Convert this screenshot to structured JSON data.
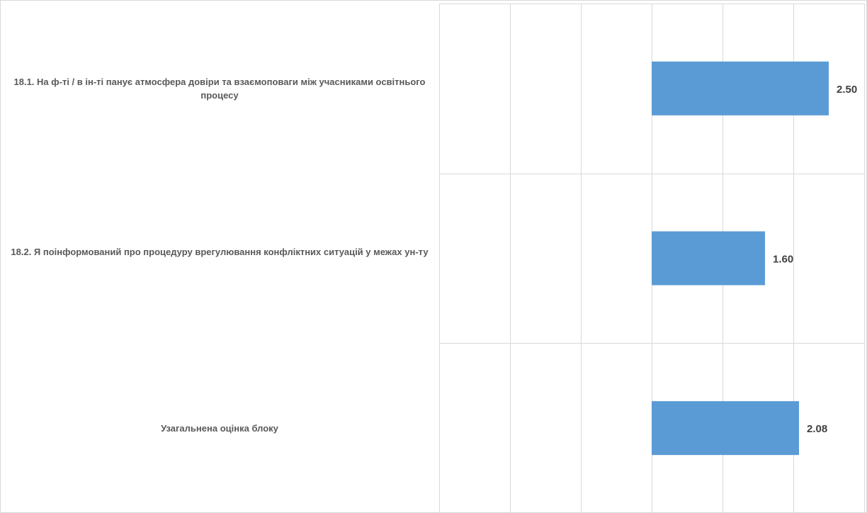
{
  "chart_data": {
    "type": "bar",
    "orientation": "horizontal",
    "categories": [
      "18.1. На ф-ті / в ін-ті панує атмосфера довіри та взаємоповаги між учасниками освітнього процесу",
      "18.2. Я поінформований про процедуру врегулювання конфліктних ситуацій у межах ун-ту",
      "Узагальнена оцінка блоку"
    ],
    "values": [
      2.5,
      1.6,
      2.08
    ],
    "value_labels": [
      "2.50",
      "1.60",
      "2.08"
    ],
    "xlim": [
      -3,
      3
    ],
    "x_tick_step": 1,
    "x_tick_labels_shown": false,
    "grid": true,
    "legend": "none",
    "title": "",
    "xlabel": "",
    "ylabel": "",
    "colors": {
      "bar": "#5b9bd5",
      "grid": "#d9d9d9",
      "label_text": "#595959",
      "value_text": "#404040",
      "border": "#d9d9d9"
    }
  }
}
